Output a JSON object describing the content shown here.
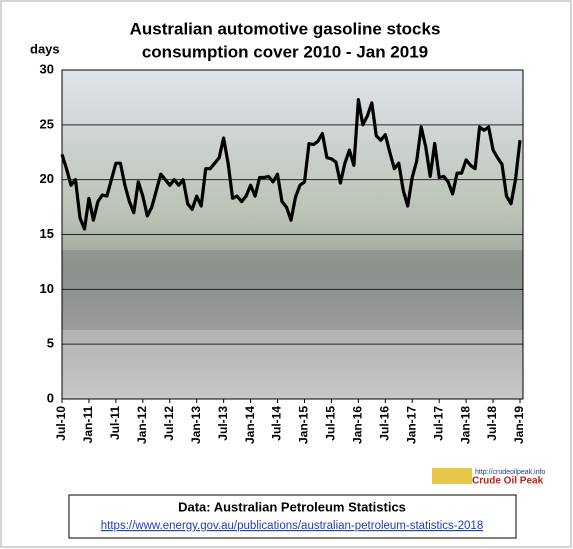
{
  "chart_data": {
    "type": "line",
    "title": [
      "Australian automotive gasoline stocks",
      "consumption cover 2010 - Jan 2019"
    ],
    "y_label": "days",
    "categories": [
      "Jul-10",
      null,
      null,
      null,
      null,
      null,
      "Jan-11",
      null,
      null,
      null,
      null,
      null,
      "Jul-11",
      null,
      null,
      null,
      null,
      null,
      "Jan-12",
      null,
      null,
      null,
      null,
      null,
      "Jul-12",
      null,
      null,
      null,
      null,
      null,
      "Jan-13",
      null,
      null,
      null,
      null,
      null,
      "Jul-13",
      null,
      null,
      null,
      null,
      null,
      "Jan-14",
      null,
      null,
      null,
      null,
      null,
      "Jul-14",
      null,
      null,
      null,
      null,
      null,
      "Jan-15",
      null,
      null,
      null,
      null,
      null,
      "Jul-15",
      null,
      null,
      null,
      null,
      null,
      "Jan-16",
      null,
      null,
      null,
      null,
      null,
      "Jul-16",
      null,
      null,
      null,
      null,
      null,
      "Jan-17",
      null,
      null,
      null,
      null,
      null,
      "Jul-17",
      null,
      null,
      null,
      null,
      null,
      "Jan-18",
      null,
      null,
      null,
      null,
      null,
      "Jul-18",
      null,
      null,
      null,
      null,
      null,
      "Jan-19"
    ],
    "values": [
      22.3,
      21,
      19.5,
      20,
      16.5,
      15.5,
      18.3,
      16.3,
      18,
      18.6,
      18.5,
      20,
      21.5,
      21.5,
      19.5,
      18,
      17,
      19.8,
      18.5,
      16.7,
      17.5,
      19,
      20.5,
      20,
      19.5,
      20,
      19.5,
      20,
      17.8,
      17.3,
      18.5,
      17.6,
      21,
      21,
      21.5,
      22,
      23.8,
      21.5,
      18.3,
      18.5,
      18,
      18.5,
      19.5,
      18.5,
      20.2,
      20.2,
      20.3,
      19.8,
      20.5,
      18,
      17.5,
      16.3,
      18.4,
      19.5,
      19.8,
      23.3,
      23.2,
      23.5,
      24.2,
      22,
      21.9,
      21.6,
      19.7,
      21.5,
      22.7,
      21.3,
      27.3,
      25,
      25.8,
      27,
      24,
      23.6,
      24.1,
      22.5,
      21,
      21.5,
      19,
      17.6,
      20.2,
      21.7,
      24.8,
      23,
      20.3,
      23.3,
      20.2,
      20.3,
      19.8,
      18.7,
      20.6,
      20.6,
      21.8,
      21.3,
      21,
      24.8,
      24.5,
      24.8,
      22.7,
      22,
      21.4,
      18.5,
      17.8,
      20,
      23.6
    ],
    "color": "#000000",
    "ylim": [
      0,
      30
    ],
    "yticks": [
      0,
      5,
      10,
      15,
      20,
      25,
      30
    ],
    "grid": true,
    "logo": {
      "url": "http://crudeoilpeak.info",
      "name": "Crude Oil Peak"
    },
    "source": {
      "text": "Data: Australian Petroleum Statistics",
      "link": "https://www.energy.gov.au/publications/australian-petroleum-statistics-2018"
    }
  }
}
